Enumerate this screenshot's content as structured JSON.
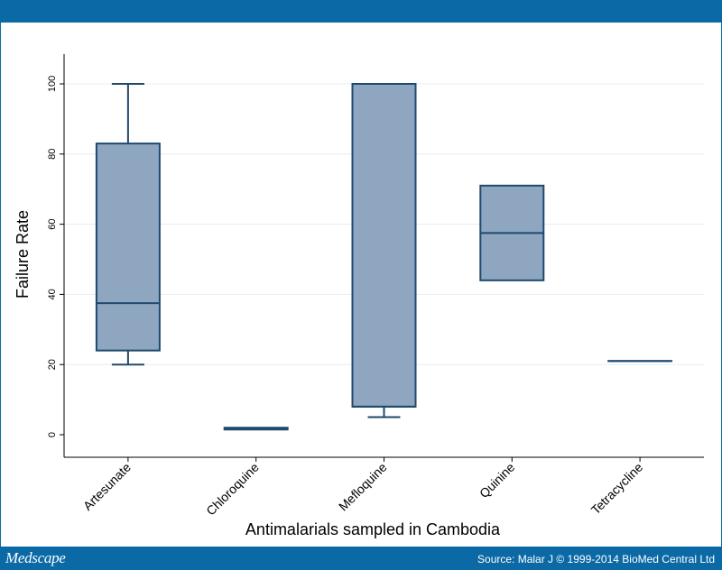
{
  "footer": {
    "brand": "Medscape",
    "source": "Source: Malar J © 1999-2014 BioMed Central Ltd"
  },
  "colors": {
    "frame": "#0b6aa6",
    "box_fill": "#8ea6c0",
    "box_stroke": "#1f4a6e",
    "grid": "#e8edf2"
  },
  "chart_data": {
    "type": "box",
    "xlabel": "Antimalarials sampled in Cambodia",
    "ylabel": "Failure Rate",
    "ylim": [
      0,
      100
    ],
    "yticks": [
      0,
      20,
      40,
      60,
      80,
      100
    ],
    "grid": true,
    "categories": [
      "Artesunate",
      "Chloroquine",
      "Mefloquine",
      "Quinine",
      "Tetracycline"
    ],
    "boxes": [
      {
        "category": "Artesunate",
        "whisker_low": 20,
        "q1": 24,
        "median": 37.5,
        "q3": 83,
        "whisker_high": 100
      },
      {
        "category": "Chloroquine",
        "whisker_low": 1.5,
        "q1": 1.5,
        "median": 1.5,
        "q3": 2,
        "whisker_high": 2
      },
      {
        "category": "Mefloquine",
        "whisker_low": 5,
        "q1": 8,
        "median": 8,
        "q3": 100,
        "whisker_high": 100
      },
      {
        "category": "Quinine",
        "whisker_low": 44,
        "q1": 44,
        "median": 57.5,
        "q3": 71,
        "whisker_high": 71
      },
      {
        "category": "Tetracycline",
        "whisker_low": 21,
        "q1": 21,
        "median": 21,
        "q3": 21,
        "whisker_high": 21
      }
    ]
  }
}
